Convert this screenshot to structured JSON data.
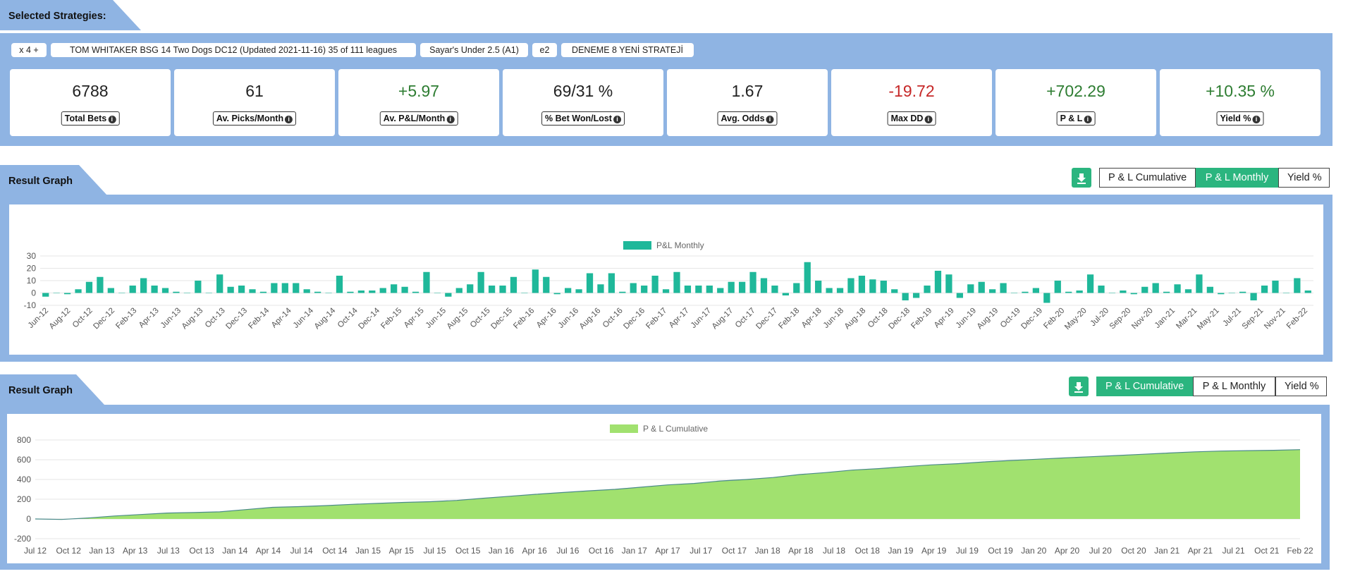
{
  "selected": {
    "title": "Selected Strategies:",
    "chips": [
      "x 4 +",
      "TOM WHITAKER BSG 14 Two Dogs DC12 (Updated 2021-11-16) 35 of 111 leagues",
      "Sayar's Under 2.5 (A1)",
      "e2",
      "DENEME 8 YENİ STRATEJİ"
    ]
  },
  "stats": [
    {
      "value": "6788",
      "label": "Total Bets",
      "color": "#222222"
    },
    {
      "value": "61",
      "label": "Av. Picks/Month",
      "color": "#222222"
    },
    {
      "value": "+5.97",
      "label": "Av. P&L/Month",
      "color": "#2e7d32"
    },
    {
      "value": "69/31 %",
      "label": "% Bet Won/Lost",
      "color": "#222222"
    },
    {
      "value": "1.67",
      "label": "Avg. Odds",
      "color": "#222222"
    },
    {
      "value": "-19.72",
      "label": "Max DD",
      "color": "#c62828"
    },
    {
      "value": "+702.29",
      "label": "P & L",
      "color": "#2e7d32"
    },
    {
      "value": "+10.35 %",
      "label": "Yield %",
      "color": "#2e7d32"
    }
  ],
  "graph1": {
    "title": "Result Graph",
    "buttons": [
      {
        "label": "P & L Cumulative",
        "active": false
      },
      {
        "label": "P & L Monthly",
        "active": true
      },
      {
        "label": "Yield %",
        "active": false
      }
    ]
  },
  "graph2": {
    "title": "Result Graph",
    "buttons": [
      {
        "label": "P & L Cumulative",
        "active": true
      },
      {
        "label": "P & L Monthly",
        "active": false
      },
      {
        "label": "Yield %",
        "active": false
      }
    ]
  },
  "chart_data": [
    {
      "type": "bar",
      "legend": [
        "P&L Monthly"
      ],
      "color": "#1fb89a",
      "ylim": [
        -10,
        30
      ],
      "yticks": [
        30,
        20,
        10,
        0,
        -10
      ],
      "grid": true,
      "legend_position": "top",
      "x_tick_labels": [
        "Jun-12",
        "Aug-12",
        "Oct-12",
        "Dec-12",
        "Feb-13",
        "Apr-13",
        "Jun-13",
        "Aug-13",
        "Oct-13",
        "Dec-13",
        "Feb-14",
        "Apr-14",
        "Jun-14",
        "Aug-14",
        "Oct-14",
        "Dec-14",
        "Feb-15",
        "Apr-15",
        "Jun-15",
        "Aug-15",
        "Oct-15",
        "Dec-15",
        "Feb-16",
        "Apr-16",
        "Jun-16",
        "Aug-16",
        "Oct-16",
        "Dec-16",
        "Feb-17",
        "Apr-17",
        "Jun-17",
        "Aug-17",
        "Oct-17",
        "Dec-17",
        "Feb-18",
        "Apr-18",
        "Jun-18",
        "Aug-18",
        "Oct-18",
        "Dec-18",
        "Feb-19",
        "Apr-19",
        "Jun-19",
        "Aug-19",
        "Oct-19",
        "Dec-19",
        "Feb-20",
        "May-20",
        "Jul-20",
        "Sep-20",
        "Nov-20",
        "Jan-21",
        "Mar-21",
        "May-21",
        "Jul-21",
        "Sep-21",
        "Nov-21",
        "Feb-22"
      ],
      "series": [
        {
          "name": "P&L Monthly",
          "values": [
            -3,
            0,
            -1,
            3,
            9,
            13,
            4,
            0,
            6,
            12,
            6,
            4,
            1,
            0,
            10,
            0,
            15,
            5,
            6,
            3,
            1,
            8,
            8,
            8,
            3,
            1,
            0,
            14,
            1,
            2,
            2,
            4,
            7,
            5,
            1,
            17,
            0,
            -3,
            4,
            7,
            17,
            6,
            6,
            13,
            0,
            19,
            13,
            -1,
            4,
            3,
            16,
            7,
            16,
            1,
            8,
            6,
            14,
            3,
            17,
            6,
            6,
            6,
            4,
            9,
            9,
            17,
            12,
            6,
            -2,
            8,
            25,
            10,
            4,
            4,
            12,
            14,
            11,
            10,
            3,
            -6,
            -4,
            6,
            18,
            15,
            -4,
            7,
            9,
            3,
            8,
            0,
            1,
            4,
            -8,
            10,
            1,
            2,
            15,
            6,
            0,
            2,
            -1,
            5,
            8,
            1,
            7,
            3,
            15,
            5,
            -1,
            0,
            1,
            -6,
            6,
            10,
            0,
            12,
            2
          ]
        }
      ]
    },
    {
      "type": "area",
      "legend": [
        "P & L Cumulative"
      ],
      "color": "#a1e16f",
      "ylim": [
        -200,
        800
      ],
      "yticks": [
        800,
        600,
        400,
        200,
        0,
        -200
      ],
      "grid": true,
      "legend_position": "top",
      "x_tick_labels": [
        "Jul 12",
        "Oct 12",
        "Jan 13",
        "Apr 13",
        "Jul 13",
        "Oct 13",
        "Jan 14",
        "Apr 14",
        "Jul 14",
        "Oct 14",
        "Jan 15",
        "Apr 15",
        "Jul 15",
        "Oct 15",
        "Jan 16",
        "Apr 16",
        "Jul 16",
        "Oct 16",
        "Jan 17",
        "Apr 17",
        "Jul 17",
        "Oct 17",
        "Jan 18",
        "Apr 18",
        "Jul 18",
        "Oct 18",
        "Jan 19",
        "Apr 19",
        "Jul 19",
        "Oct 19",
        "Jan 20",
        "Apr 20",
        "Jul 20",
        "Oct 20",
        "Jan 21",
        "Apr 21",
        "Jul 21",
        "Oct 21",
        "Feb 22"
      ],
      "series": [
        {
          "name": "P & L Cumulative",
          "values": [
            0,
            -5,
            10,
            30,
            45,
            60,
            65,
            72,
            95,
            118,
            125,
            135,
            148,
            158,
            168,
            175,
            188,
            210,
            230,
            250,
            268,
            285,
            300,
            322,
            345,
            360,
            385,
            400,
            420,
            450,
            470,
            495,
            510,
            530,
            548,
            560,
            578,
            592,
            605,
            618,
            630,
            642,
            655,
            668,
            680,
            688,
            692,
            696,
            702
          ]
        }
      ]
    }
  ]
}
